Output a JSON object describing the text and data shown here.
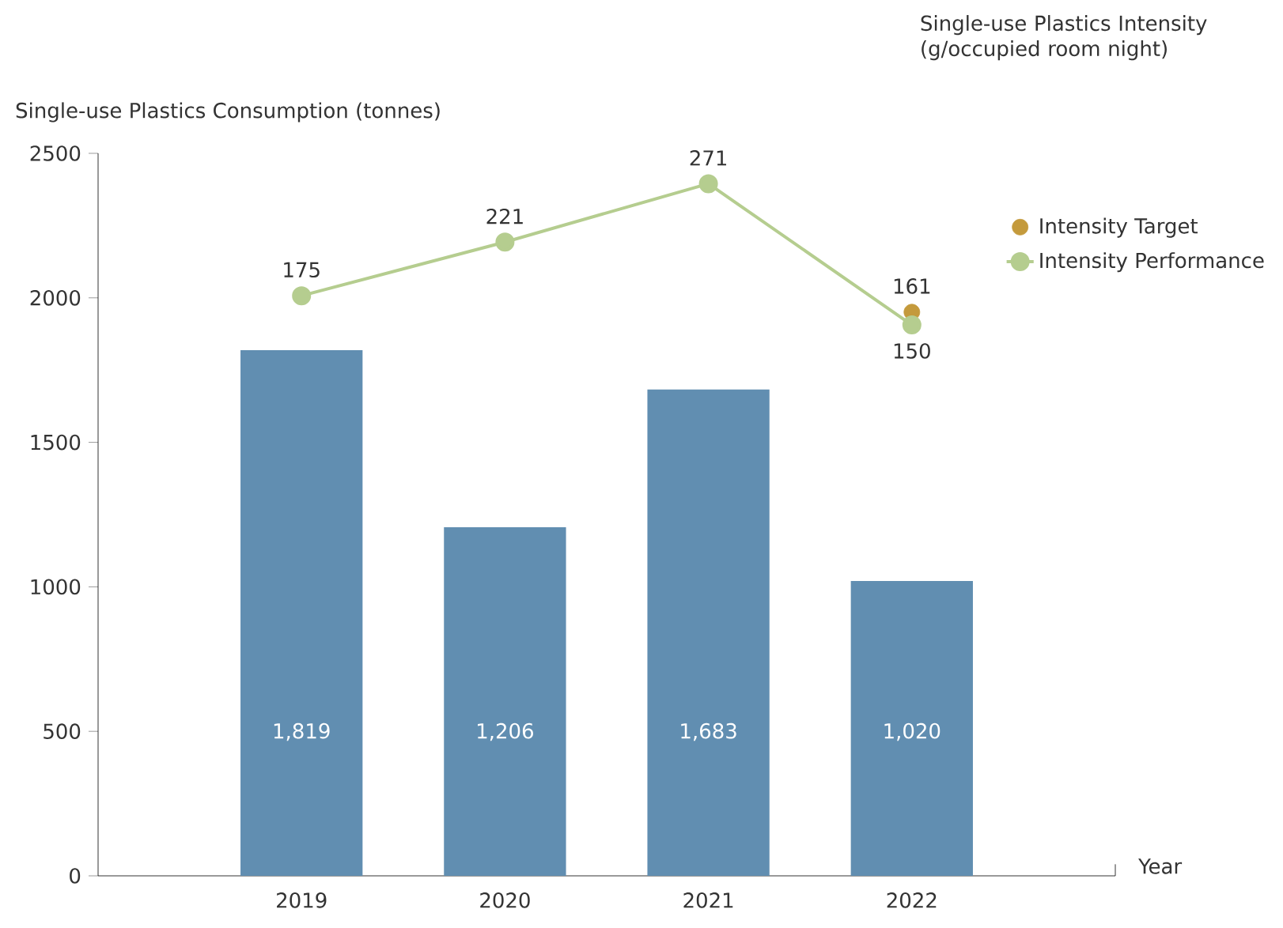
{
  "chart_data": {
    "type": "bar",
    "categories": [
      "2019",
      "2020",
      "2021",
      "2022"
    ],
    "xlabel": "Year",
    "ylabel": "Single-use Plastics Consumption (tonnes)",
    "annotations": [
      "Single-use Plastics Intensity (g/occupied room night)"
    ],
    "ylim": [
      0,
      2500
    ],
    "yticks": [
      0,
      500,
      1000,
      1500,
      2000,
      2500
    ],
    "legend": "top right",
    "marker": "circle",
    "series": [
      {
        "type": "bar",
        "color": "#618eb1",
        "values": [
          1819,
          1206,
          1683,
          1020
        ],
        "value_labels": [
          "1,819",
          "1,206",
          "1,683",
          "1,020"
        ]
      },
      {
        "type": "scatter",
        "axis": "y2",
        "name": "Intensity Target",
        "color": "#c49a3c",
        "values": [
          null,
          null,
          null,
          161
        ],
        "value_labels": [
          null,
          null,
          null,
          "161"
        ]
      },
      {
        "type": "line",
        "axis": "y2",
        "name": "Intensity Performance",
        "color": "#b5cd8f",
        "values": [
          175,
          221,
          271,
          150
        ],
        "value_labels": [
          "175",
          "221",
          "271",
          "150"
        ]
      }
    ]
  }
}
